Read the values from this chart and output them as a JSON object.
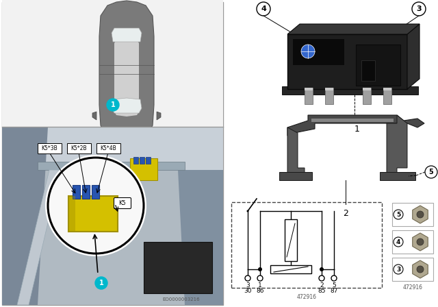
{
  "bg_color": "#ffffff",
  "top_left_bg": "#f0f0f0",
  "car_body_color": "#888888",
  "car_window_color": "#e8e8e8",
  "car_dark": "#555555",
  "engine_bg": "#a8b0b8",
  "engine_left_dark": "#7a8590",
  "engine_strut": "#c0c8d0",
  "yellow_relay": "#d4c000",
  "blue_conn": "#2855b0",
  "relay_dark": "#1a1a1a",
  "relay_mid": "#333333",
  "relay_prong": "#888888",
  "bracket_color": "#505050",
  "bracket_light": "#909090",
  "nut_outer": "#a8a090",
  "nut_inner": "#707060",
  "label_cyan": "#00b8cc",
  "circle_border": "#333333",
  "code_left": "EO0000003216",
  "code_right": "472916",
  "terminal_top": [
    "3",
    "1",
    "2",
    "5"
  ],
  "terminal_bot": [
    "30",
    "86",
    "85",
    "87"
  ]
}
